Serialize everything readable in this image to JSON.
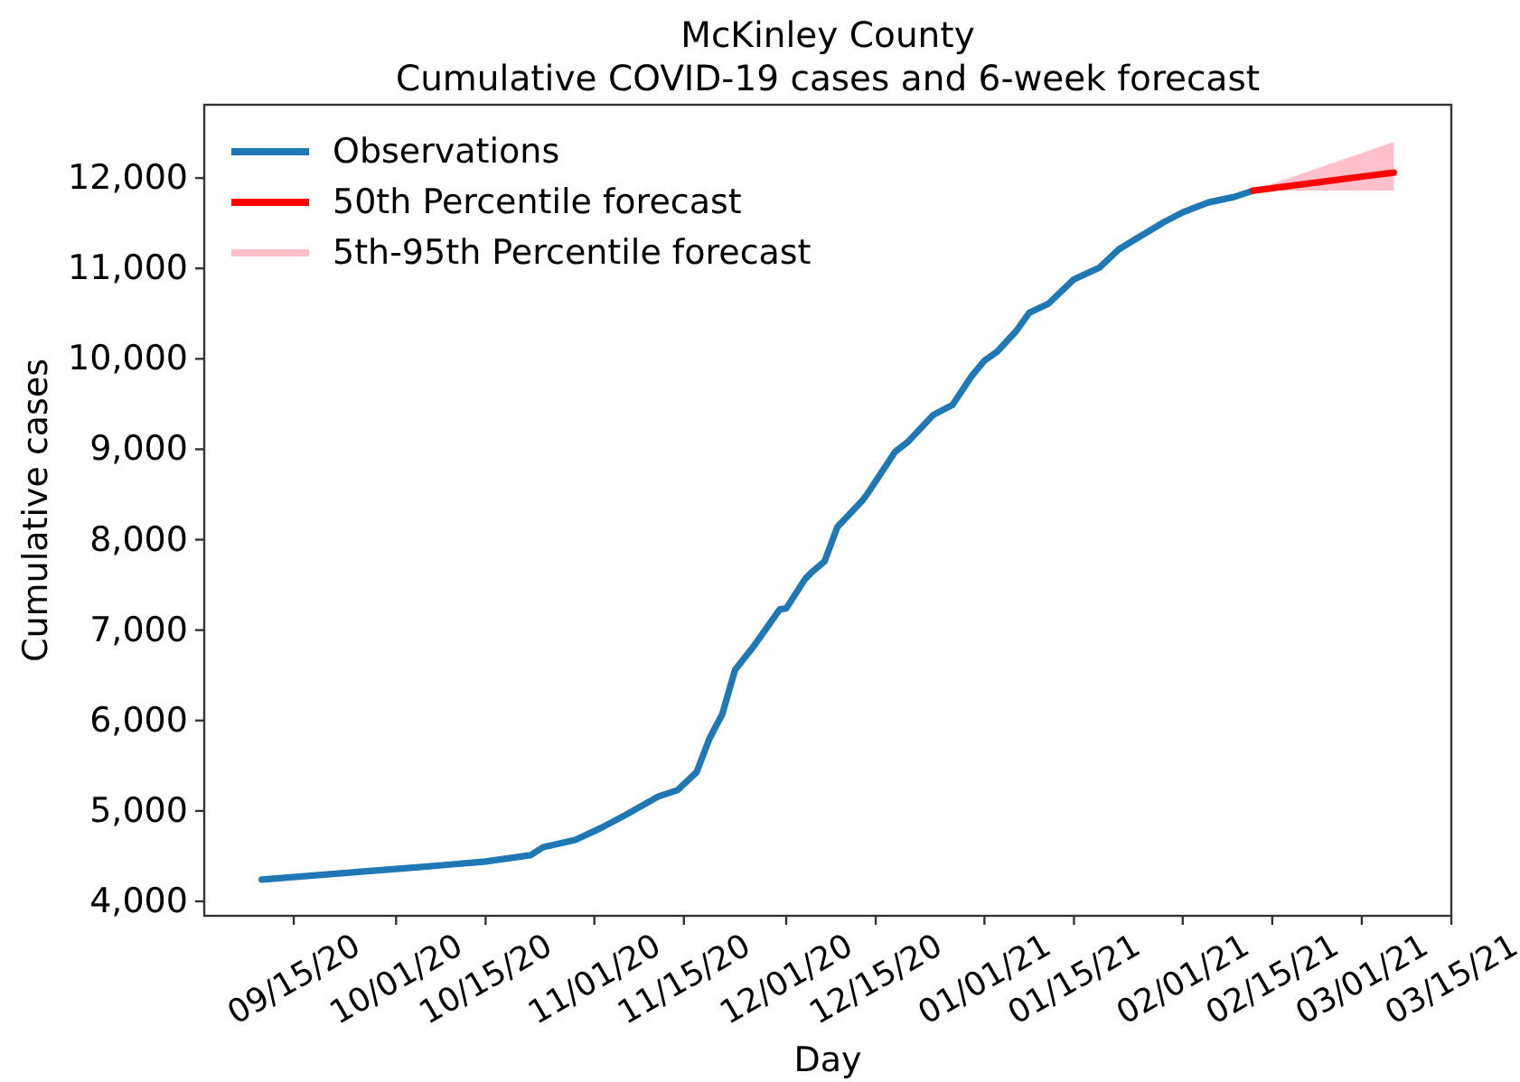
{
  "chart_data": {
    "type": "line",
    "title": "McKinley County",
    "subtitle": "Cumulative COVID-19 cases and 6-week forecast",
    "xlabel": "Day",
    "ylabel": "Cumulative cases",
    "xlim": [
      "2020-09-01",
      "2021-03-15"
    ],
    "xticks": [
      {
        "value": "2020-09-15",
        "label": "09/15/20"
      },
      {
        "value": "2020-10-01",
        "label": "10/01/20"
      },
      {
        "value": "2020-10-15",
        "label": "10/15/20"
      },
      {
        "value": "2020-11-01",
        "label": "11/01/20"
      },
      {
        "value": "2020-11-15",
        "label": "11/15/20"
      },
      {
        "value": "2020-12-01",
        "label": "12/01/20"
      },
      {
        "value": "2020-12-15",
        "label": "12/15/20"
      },
      {
        "value": "2021-01-01",
        "label": "01/01/21"
      },
      {
        "value": "2021-01-15",
        "label": "01/15/21"
      },
      {
        "value": "2021-02-01",
        "label": "02/01/21"
      },
      {
        "value": "2021-02-15",
        "label": "02/15/21"
      },
      {
        "value": "2021-03-01",
        "label": "03/01/21"
      },
      {
        "value": "2021-03-15",
        "label": "03/15/21"
      }
    ],
    "ylim": [
      3840,
      12810
    ],
    "yticks": [
      {
        "value": 4000,
        "label": "4,000"
      },
      {
        "value": 5000,
        "label": "5,000"
      },
      {
        "value": 6000,
        "label": "6,000"
      },
      {
        "value": 7000,
        "label": "7,000"
      },
      {
        "value": 8000,
        "label": "8,000"
      },
      {
        "value": 9000,
        "label": "9,000"
      },
      {
        "value": 10000,
        "label": "10,000"
      },
      {
        "value": 11000,
        "label": "11,000"
      },
      {
        "value": 12000,
        "label": "12,000"
      }
    ],
    "legend": "top left",
    "series": [
      {
        "name": "Observations",
        "color": "#1f77b4",
        "x": [
          "2020-09-10",
          "2020-09-26",
          "2020-10-05",
          "2020-10-15",
          "2020-10-22",
          "2020-10-24",
          "2020-10-29",
          "2020-11-02",
          "2020-11-06",
          "2020-11-11",
          "2020-11-14",
          "2020-11-17",
          "2020-11-19",
          "2020-11-21",
          "2020-11-23",
          "2020-11-26",
          "2020-11-30",
          "2020-12-01",
          "2020-12-04",
          "2020-12-05",
          "2020-12-07",
          "2020-12-09",
          "2020-12-13",
          "2020-12-14",
          "2020-12-18",
          "2020-12-20",
          "2020-12-24",
          "2020-12-27",
          "2020-12-30",
          "2021-01-01",
          "2021-01-03",
          "2021-01-06",
          "2021-01-08",
          "2021-01-11",
          "2021-01-15",
          "2021-01-19",
          "2021-01-22",
          "2021-01-25",
          "2021-01-29",
          "2021-02-01",
          "2021-02-05",
          "2021-02-09",
          "2021-02-12"
        ],
        "values": [
          4240,
          4330,
          4380,
          4440,
          4510,
          4600,
          4680,
          4810,
          4960,
          5160,
          5230,
          5430,
          5800,
          6070,
          6560,
          6830,
          7230,
          7240,
          7570,
          7640,
          7760,
          8140,
          8440,
          8540,
          8970,
          9080,
          9380,
          9490,
          9810,
          9980,
          10080,
          10310,
          10510,
          10610,
          10880,
          11010,
          11210,
          11340,
          11510,
          11620,
          11730,
          11790,
          11860
        ]
      },
      {
        "name": "50th Percentile forecast",
        "color": "#ff0000",
        "x": [
          "2021-02-12",
          "2021-03-06"
        ],
        "values": [
          11860,
          12060
        ]
      },
      {
        "name": "5th-95th Percentile forecast",
        "type": "area",
        "color": "#ffc0cb",
        "x": [
          "2021-02-12",
          "2021-03-06"
        ],
        "values": [
          null,
          null
        ],
        "lower": [
          11860,
          11860
        ],
        "upper": [
          11860,
          12400
        ]
      }
    ]
  }
}
